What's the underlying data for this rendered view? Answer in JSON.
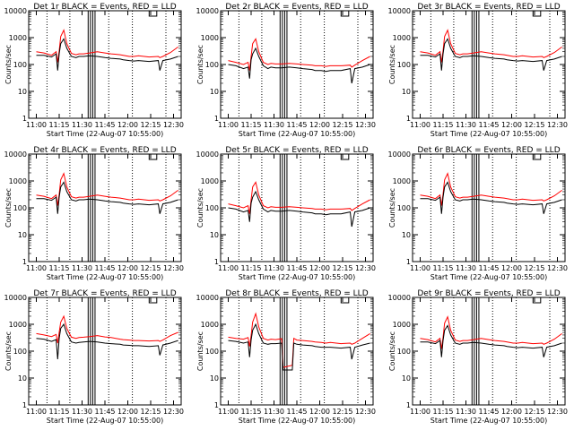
{
  "chart_data": {
    "type": "line",
    "panels": [
      {
        "title": "Det 1r BLACK = Events, RED = LLD",
        "profile": 1
      },
      {
        "title": "Det 2r BLACK = Events, RED = LLD",
        "profile": 2
      },
      {
        "title": "Det 3r BLACK = Events, RED = LLD",
        "profile": 1
      },
      {
        "title": "Det 4r BLACK = Events, RED = LLD",
        "profile": 1
      },
      {
        "title": "Det 5r BLACK = Events, RED = LLD",
        "profile": 2
      },
      {
        "title": "Det 6r BLACK = Events, RED = LLD",
        "profile": 1
      },
      {
        "title": "Det 7r BLACK = Events, RED = LLD",
        "profile": 3
      },
      {
        "title": "Det 8r BLACK = Events, RED = LLD",
        "profile": 4
      },
      {
        "title": "Det 9r BLACK = Events, RED = LLD",
        "profile": 1
      }
    ],
    "xlabel": "Start Time (22-Aug-07 10:55:00)",
    "ylabel": "Counts/sec",
    "x_ticks": [
      "11:00",
      "11:15",
      "11:30",
      "11:45",
      "12:00",
      "12:15",
      "12:30"
    ],
    "y_ticks": [
      "1",
      "10",
      "100",
      "1000",
      "10000"
    ],
    "x_range_minutes_from_start": [
      0,
      100
    ],
    "y_range": [
      1,
      10000
    ],
    "y_scale": "log",
    "series_colors": {
      "events": "#000000",
      "lld": "#ff0000"
    },
    "series_profiles": {
      "1": {
        "events": [
          [
            5,
            220
          ],
          [
            10,
            220
          ],
          [
            15,
            190
          ],
          [
            18,
            250
          ],
          [
            19,
            60
          ],
          [
            20,
            250
          ],
          [
            21,
            600
          ],
          [
            23,
            900
          ],
          [
            25,
            400
          ],
          [
            28,
            200
          ],
          [
            31,
            180
          ],
          [
            33,
            200
          ],
          [
            36,
            200
          ],
          [
            40,
            210
          ],
          [
            45,
            200
          ],
          [
            50,
            180
          ],
          [
            54,
            170
          ],
          [
            60,
            160
          ],
          [
            62,
            150
          ],
          [
            66,
            140
          ],
          [
            69,
            135
          ],
          [
            72,
            140
          ],
          [
            79,
            130
          ],
          [
            85,
            140
          ],
          [
            86,
            60
          ],
          [
            88,
            140
          ],
          [
            93,
            160
          ],
          [
            98,
            200
          ]
        ],
        "lld": [
          [
            5,
            300
          ],
          [
            10,
            270
          ],
          [
            15,
            220
          ],
          [
            18,
            300
          ],
          [
            19,
            120
          ],
          [
            20,
            320
          ],
          [
            21,
            1100
          ],
          [
            23,
            1900
          ],
          [
            25,
            600
          ],
          [
            28,
            260
          ],
          [
            31,
            230
          ],
          [
            33,
            250
          ],
          [
            36,
            250
          ],
          [
            40,
            270
          ],
          [
            45,
            300
          ],
          [
            50,
            270
          ],
          [
            54,
            250
          ],
          [
            60,
            230
          ],
          [
            62,
            220
          ],
          [
            66,
            200
          ],
          [
            69,
            200
          ],
          [
            72,
            210
          ],
          [
            79,
            190
          ],
          [
            85,
            200
          ],
          [
            86,
            180
          ],
          [
            88,
            200
          ],
          [
            93,
            280
          ],
          [
            98,
            450
          ]
        ]
      },
      "2": {
        "events": [
          [
            5,
            100
          ],
          [
            10,
            90
          ],
          [
            15,
            70
          ],
          [
            18,
            80
          ],
          [
            19,
            30
          ],
          [
            20,
            150
          ],
          [
            21,
            250
          ],
          [
            23,
            400
          ],
          [
            25,
            200
          ],
          [
            28,
            90
          ],
          [
            31,
            70
          ],
          [
            33,
            80
          ],
          [
            36,
            75
          ],
          [
            40,
            75
          ],
          [
            45,
            80
          ],
          [
            50,
            75
          ],
          [
            54,
            70
          ],
          [
            60,
            65
          ],
          [
            62,
            60
          ],
          [
            66,
            60
          ],
          [
            69,
            55
          ],
          [
            72,
            60
          ],
          [
            79,
            60
          ],
          [
            85,
            70
          ],
          [
            86,
            20
          ],
          [
            88,
            70
          ],
          [
            93,
            80
          ],
          [
            98,
            100
          ]
        ],
        "lld": [
          [
            5,
            140
          ],
          [
            10,
            120
          ],
          [
            15,
            100
          ],
          [
            18,
            120
          ],
          [
            19,
            60
          ],
          [
            20,
            200
          ],
          [
            21,
            600
          ],
          [
            23,
            900
          ],
          [
            25,
            300
          ],
          [
            28,
            120
          ],
          [
            31,
            100
          ],
          [
            33,
            110
          ],
          [
            36,
            105
          ],
          [
            40,
            105
          ],
          [
            45,
            110
          ],
          [
            50,
            105
          ],
          [
            54,
            100
          ],
          [
            60,
            95
          ],
          [
            62,
            90
          ],
          [
            66,
            90
          ],
          [
            69,
            85
          ],
          [
            72,
            90
          ],
          [
            79,
            90
          ],
          [
            85,
            95
          ],
          [
            86,
            80
          ],
          [
            88,
            95
          ],
          [
            93,
            140
          ],
          [
            98,
            200
          ]
        ]
      },
      "3": {
        "events": [
          [
            5,
            300
          ],
          [
            10,
            280
          ],
          [
            15,
            230
          ],
          [
            18,
            270
          ],
          [
            19,
            50
          ],
          [
            20,
            300
          ],
          [
            21,
            700
          ],
          [
            23,
            1000
          ],
          [
            25,
            450
          ],
          [
            28,
            220
          ],
          [
            31,
            200
          ],
          [
            33,
            210
          ],
          [
            36,
            220
          ],
          [
            40,
            230
          ],
          [
            45,
            220
          ],
          [
            50,
            200
          ],
          [
            54,
            190
          ],
          [
            60,
            180
          ],
          [
            62,
            170
          ],
          [
            66,
            165
          ],
          [
            69,
            160
          ],
          [
            72,
            160
          ],
          [
            79,
            150
          ],
          [
            85,
            160
          ],
          [
            86,
            70
          ],
          [
            88,
            170
          ],
          [
            93,
            200
          ],
          [
            98,
            250
          ]
        ],
        "lld": [
          [
            5,
            450
          ],
          [
            10,
            400
          ],
          [
            15,
            350
          ],
          [
            18,
            420
          ],
          [
            19,
            200
          ],
          [
            20,
            500
          ],
          [
            21,
            1200
          ],
          [
            23,
            2000
          ],
          [
            25,
            700
          ],
          [
            28,
            330
          ],
          [
            31,
            300
          ],
          [
            33,
            320
          ],
          [
            36,
            330
          ],
          [
            40,
            350
          ],
          [
            45,
            380
          ],
          [
            50,
            340
          ],
          [
            54,
            320
          ],
          [
            60,
            280
          ],
          [
            62,
            270
          ],
          [
            66,
            260
          ],
          [
            69,
            250
          ],
          [
            72,
            250
          ],
          [
            79,
            240
          ],
          [
            85,
            250
          ],
          [
            86,
            230
          ],
          [
            88,
            260
          ],
          [
            93,
            380
          ],
          [
            98,
            500
          ]
        ]
      },
      "4": {
        "events": [
          [
            5,
            250
          ],
          [
            10,
            230
          ],
          [
            15,
            200
          ],
          [
            18,
            220
          ],
          [
            19,
            60
          ],
          [
            20,
            260
          ],
          [
            21,
            600
          ],
          [
            23,
            1000
          ],
          [
            25,
            450
          ],
          [
            28,
            200
          ],
          [
            31,
            180
          ],
          [
            33,
            190
          ],
          [
            36,
            190
          ],
          [
            40,
            200
          ],
          [
            41,
            20
          ],
          [
            47,
            20
          ],
          [
            48,
            200
          ],
          [
            50,
            180
          ],
          [
            54,
            170
          ],
          [
            60,
            160
          ],
          [
            62,
            150
          ],
          [
            66,
            140
          ],
          [
            69,
            140
          ],
          [
            72,
            140
          ],
          [
            79,
            130
          ],
          [
            85,
            140
          ],
          [
            86,
            50
          ],
          [
            88,
            140
          ],
          [
            93,
            170
          ],
          [
            98,
            200
          ]
        ],
        "lld": [
          [
            5,
            330
          ],
          [
            10,
            300
          ],
          [
            15,
            280
          ],
          [
            18,
            320
          ],
          [
            19,
            150
          ],
          [
            20,
            380
          ],
          [
            21,
            1200
          ],
          [
            23,
            2500
          ],
          [
            25,
            800
          ],
          [
            28,
            300
          ],
          [
            31,
            260
          ],
          [
            33,
            280
          ],
          [
            36,
            270
          ],
          [
            40,
            290
          ],
          [
            41,
            25
          ],
          [
            47,
            30
          ],
          [
            48,
            300
          ],
          [
            50,
            260
          ],
          [
            54,
            250
          ],
          [
            60,
            230
          ],
          [
            62,
            220
          ],
          [
            66,
            210
          ],
          [
            69,
            200
          ],
          [
            72,
            210
          ],
          [
            79,
            190
          ],
          [
            85,
            200
          ],
          [
            86,
            180
          ],
          [
            88,
            200
          ],
          [
            93,
            300
          ],
          [
            98,
            450
          ]
        ]
      }
    }
  }
}
